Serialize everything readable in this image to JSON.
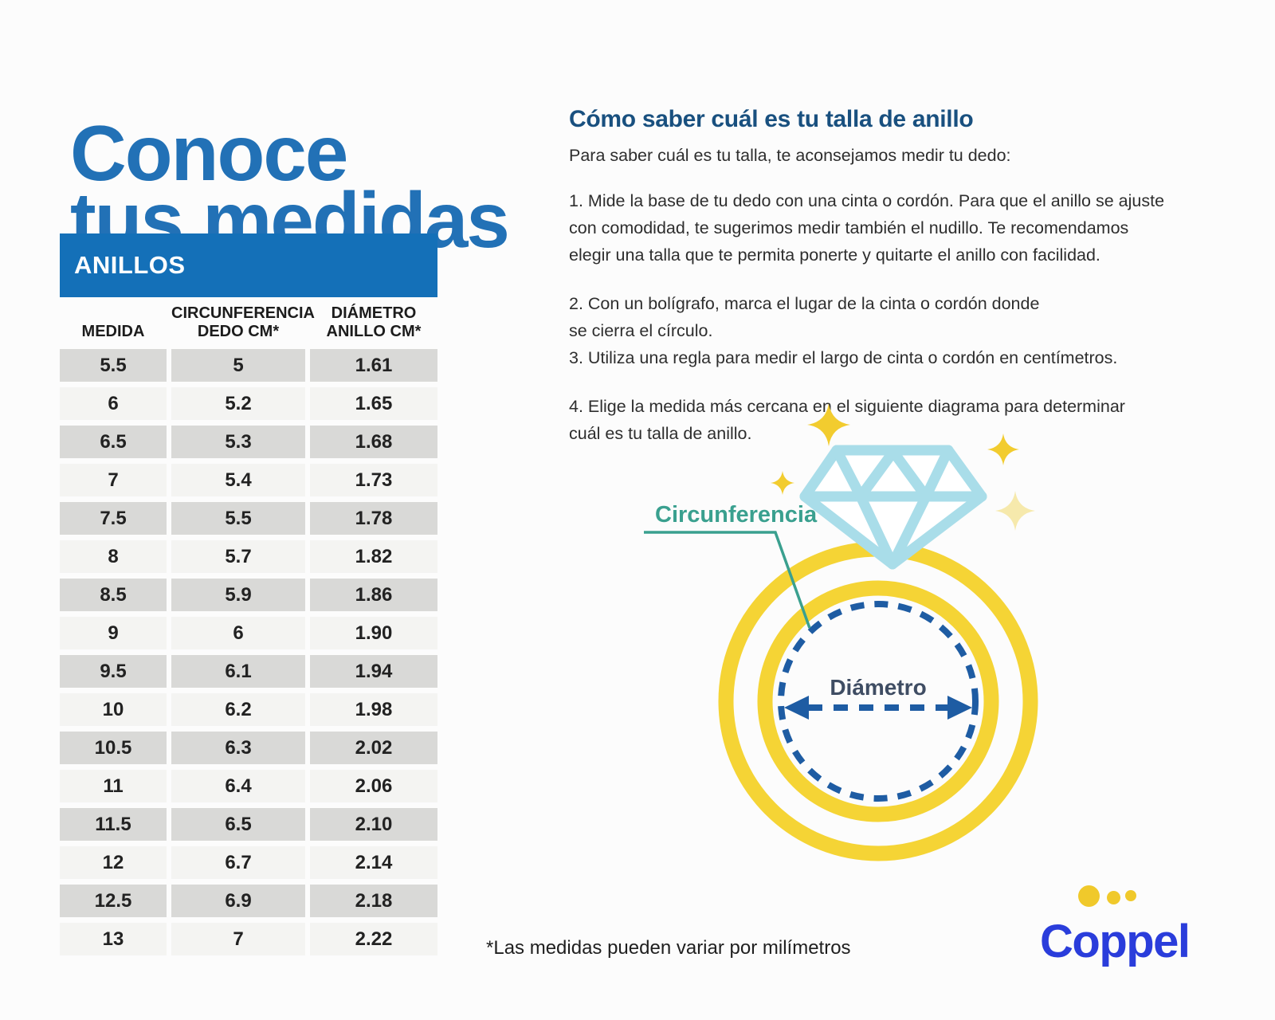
{
  "title": {
    "line1": "Conoce",
    "line2": "tus medidas",
    "color": "#2271b6"
  },
  "table": {
    "header": "ANILLOS",
    "header_bg": "#1470b8",
    "columns": [
      "MEDIDA",
      "CIRCUNFERENCIA\nDEDO CM*",
      "DIÁMETRO\nANILLO CM*"
    ],
    "rows": [
      [
        "5.5",
        "5",
        "1.61"
      ],
      [
        "6",
        "5.2",
        "1.65"
      ],
      [
        "6.5",
        "5.3",
        "1.68"
      ],
      [
        "7",
        "5.4",
        "1.73"
      ],
      [
        "7.5",
        "5.5",
        "1.78"
      ],
      [
        "8",
        "5.7",
        "1.82"
      ],
      [
        "8.5",
        "5.9",
        "1.86"
      ],
      [
        "9",
        "6",
        "1.90"
      ],
      [
        "9.5",
        "6.1",
        "1.94"
      ],
      [
        "10",
        "6.2",
        "1.98"
      ],
      [
        "10.5",
        "6.3",
        "2.02"
      ],
      [
        "11",
        "6.4",
        "2.06"
      ],
      [
        "11.5",
        "6.5",
        "2.10"
      ],
      [
        "12",
        "6.7",
        "2.14"
      ],
      [
        "12.5",
        "6.9",
        "2.18"
      ],
      [
        "13",
        "7",
        "2.22"
      ]
    ],
    "row_color_dark": "#d9d9d7",
    "row_color_light": "#f4f4f2"
  },
  "instructions": {
    "heading": "Cómo saber cuál es tu talla de anillo",
    "heading_color": "#19507f",
    "intro": "Para saber cuál es tu talla, te aconsejamos medir tu dedo:",
    "steps": [
      "1. Mide la base de tu dedo con una cinta o cordón. Para que el anillo se ajuste\ncon comodidad, te sugerimos medir también el nudillo. Te recomendamos\nelegir una talla que te permita ponerte y quitarte el anillo con facilidad.",
      "2. Con un bolígrafo, marca el lugar de la cinta o cordón donde\nse cierra el círculo.",
      "3. Utiliza una regla para medir el largo de cinta o cordón en centímetros.",
      "4. Elige la medida más cercana en el siguiente diagrama para determinar\ncuál es tu talla de anillo."
    ]
  },
  "diagram": {
    "circumference_label": "Circunferencia",
    "circumference_color": "#3aa08f",
    "diameter_label": "Diámetro",
    "diameter_text_color": "#3f4d63",
    "ring_color": "#f5d435",
    "diamond_color": "#a9dde9",
    "dash_color": "#1e5ca3",
    "sparkle_color": "#f2cc2f",
    "sparkle_pale_color": "#f6e9ac"
  },
  "footnote": "*Las medidas pueden variar por milímetros",
  "logo": {
    "text": "Coppel",
    "text_color": "#2a3ddb",
    "dot_color": "#f0c92b"
  }
}
